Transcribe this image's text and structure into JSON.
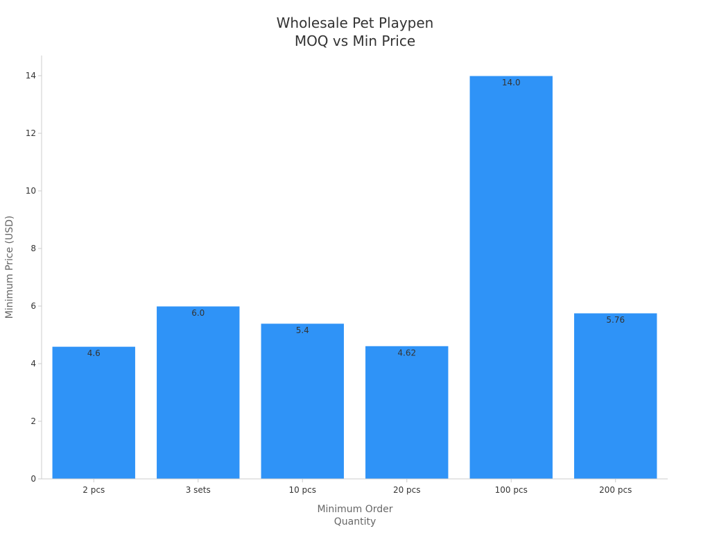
{
  "chart_data": {
    "type": "bar",
    "title_lines": [
      "Wholesale Pet Playpen",
      "MOQ vs Min Price"
    ],
    "xlabel_lines": [
      "Minimum Order",
      "Quantity"
    ],
    "ylabel": "Minimum Price (USD)",
    "categories": [
      "2 pcs",
      "3 sets",
      "10 pcs",
      "20 pcs",
      "100 pcs",
      "200 pcs"
    ],
    "values": [
      4.6,
      6.0,
      5.4,
      4.62,
      14.0,
      5.76
    ],
    "value_labels": [
      "4.6",
      "6.0",
      "5.4",
      "4.62",
      "14.0",
      "5.76"
    ],
    "ylim": [
      0,
      14.7
    ],
    "yticks": [
      0,
      2,
      4,
      6,
      8,
      10,
      12,
      14
    ],
    "ytick_labels": [
      "0",
      "2",
      "4",
      "6",
      "8",
      "10",
      "12",
      "14"
    ],
    "grid": false,
    "legend": "none",
    "colors": {
      "bar": "#2f93f7",
      "bar_edge": "#ffffff",
      "axis": "#cccccc",
      "text": "#333333",
      "axis_title": "#666666"
    }
  }
}
